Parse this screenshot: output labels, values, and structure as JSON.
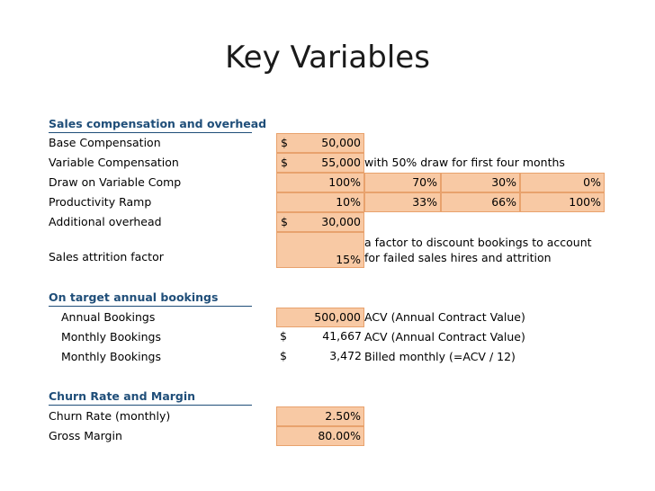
{
  "title": "Key Variables",
  "sections": {
    "sales": {
      "header": "Sales compensation and overhead",
      "base_comp": {
        "label": "Base Compensation",
        "currency": "$",
        "value": "50,000"
      },
      "variable_comp": {
        "label": "Variable Compensation",
        "currency": "$",
        "value": "55,000",
        "note": "with 50% draw for first four months"
      },
      "draw": {
        "label": "Draw on Variable Comp",
        "values": [
          "100%",
          "70%",
          "30%",
          "0%"
        ]
      },
      "ramp": {
        "label": "Productivity Ramp",
        "values": [
          "10%",
          "33%",
          "66%",
          "100%"
        ]
      },
      "overhead": {
        "label": "Additional overhead",
        "currency": "$",
        "value": "30,000"
      },
      "attrition": {
        "label": "Sales attrition factor",
        "value": "15%",
        "note_line1": "a factor to discount bookings to account",
        "note_line2": "for failed sales hires and attrition"
      }
    },
    "bookings": {
      "header": "On target annual  bookings",
      "annual": {
        "label": "Annual Bookings",
        "value": "500,000",
        "note": "ACV (Annual Contract Value)"
      },
      "monthly1": {
        "label": "Monthly Bookings",
        "currency": "$",
        "value": "41,667",
        "note": "ACV (Annual Contract Value)"
      },
      "monthly2": {
        "label": "Monthly Bookings",
        "currency": "$",
        "value": "3,472",
        "note": "Billed monthly (=ACV / 12)"
      }
    },
    "churn": {
      "header": "Churn Rate and Margin",
      "churn_rate": {
        "label": "Churn Rate (monthly)",
        "value": "2.50%"
      },
      "gross_margin": {
        "label": "Gross Margin",
        "value": "80.00%"
      }
    }
  }
}
